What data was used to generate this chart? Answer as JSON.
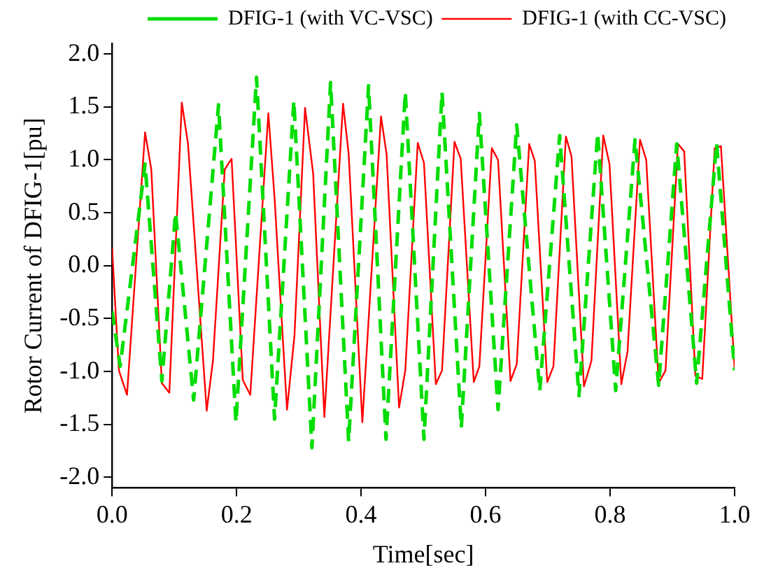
{
  "chart_data": {
    "type": "line",
    "xlabel": "Time[sec]",
    "ylabel": "Rotor Current of DFIG-1[pu]",
    "xlim": [
      0,
      1
    ],
    "xticks": [
      {
        "value": 0,
        "label": "0.0"
      },
      {
        "value": 0.2,
        "label": "0.2"
      },
      {
        "value": 0.4,
        "label": "0.4"
      },
      {
        "value": 0.6,
        "label": "0.6"
      },
      {
        "value": 0.8,
        "label": "0.8"
      },
      {
        "value": 1,
        "label": "1.0"
      }
    ],
    "ylim": [
      -2.1,
      2.1
    ],
    "yticks": [
      {
        "value": -2,
        "label": "-2.0"
      },
      {
        "value": -1.5,
        "label": "-1.5"
      },
      {
        "value": -1,
        "label": "-1.0"
      },
      {
        "value": -0.5,
        "label": "-0.5"
      },
      {
        "value": 0,
        "label": "0.0"
      },
      {
        "value": 0.5,
        "label": "0.5"
      },
      {
        "value": 1,
        "label": "1.0"
      },
      {
        "value": 1.5,
        "label": "1.5"
      },
      {
        "value": 2,
        "label": "2.0"
      }
    ],
    "grid": false,
    "legend": "top right",
    "marker": "none",
    "series": [
      {
        "name": "DFIG-1 (with VC-VSC)",
        "color": "#00dd00",
        "line_style": "dashed",
        "x": [
          0,
          0.013,
          0.053,
          0.08,
          0.102,
          0.131,
          0.171,
          0.199,
          0.232,
          0.261,
          0.292,
          0.321,
          0.351,
          0.38,
          0.412,
          0.44,
          0.471,
          0.501,
          0.53,
          0.561,
          0.59,
          0.62,
          0.65,
          0.687,
          0.719,
          0.75,
          0.78,
          0.809,
          0.84,
          0.878,
          0.907,
          0.939,
          0.971,
          1.0
        ],
        "values": [
          -0.43,
          -0.95,
          0.96,
          -1.09,
          0.5,
          -1.27,
          1.52,
          -1.48,
          1.78,
          -1.45,
          1.56,
          -1.72,
          1.73,
          -1.66,
          1.7,
          -1.64,
          1.64,
          -1.64,
          1.64,
          -1.53,
          1.44,
          -1.36,
          1.33,
          -1.18,
          1.23,
          -1.23,
          1.25,
          -1.18,
          1.19,
          -1.13,
          1.15,
          -1.11,
          1.16,
          -0.99
        ]
      },
      {
        "name": "DFIG-1 (with CC-VSC)",
        "color": "#ff0000",
        "line_style": "solid",
        "x": [
          0,
          0.011,
          0.024,
          0.053,
          0.063,
          0.08,
          0.092,
          0.112,
          0.122,
          0.152,
          0.162,
          0.181,
          0.192,
          0.21,
          0.222,
          0.251,
          0.261,
          0.281,
          0.293,
          0.31,
          0.323,
          0.341,
          0.371,
          0.38,
          0.402,
          0.432,
          0.441,
          0.461,
          0.471,
          0.491,
          0.501,
          0.52,
          0.53,
          0.55,
          0.56,
          0.581,
          0.59,
          0.61,
          0.62,
          0.64,
          0.65,
          0.67,
          0.679,
          0.699,
          0.709,
          0.729,
          0.738,
          0.758,
          0.77,
          0.789,
          0.799,
          0.818,
          0.828,
          0.848,
          0.858,
          0.878,
          0.889,
          0.909,
          0.919,
          0.937,
          0.948,
          0.968,
          0.978,
          1.0
        ],
        "values": [
          0.17,
          -0.99,
          -1.22,
          1.26,
          0.91,
          -1.11,
          -1.2,
          1.54,
          1.15,
          -1.37,
          -0.9,
          0.91,
          1.01,
          -1.08,
          -1.22,
          1.44,
          0.64,
          -1.36,
          -0.66,
          1.49,
          0.87,
          -1.43,
          1.53,
          1.06,
          -1.48,
          1.41,
          1.05,
          -1.34,
          -0.99,
          1.16,
          0.97,
          -1.12,
          -0.99,
          1.17,
          1.01,
          -1.1,
          -0.95,
          1.11,
          1.0,
          -1.09,
          -0.93,
          1.15,
          0.99,
          -1.1,
          -0.95,
          1.22,
          1.03,
          -1.14,
          -0.9,
          1.23,
          0.96,
          -1.12,
          -0.81,
          1.19,
          1.0,
          -1.11,
          -0.99,
          1.15,
          1.08,
          -1.04,
          -1.07,
          1.11,
          1.13,
          -0.97
        ]
      }
    ]
  }
}
